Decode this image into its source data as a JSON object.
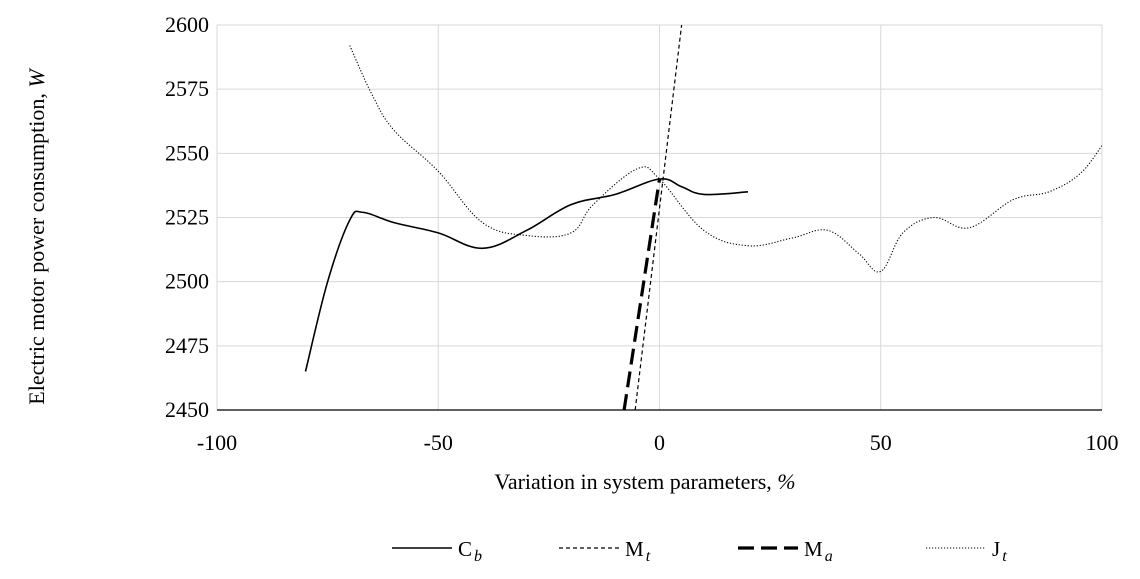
{
  "chart_data": {
    "type": "line",
    "xlabel_main": "Variation in system parameters,",
    "xlabel_unit": "%",
    "ylabel_main": "Electric motor power consumption,",
    "ylabel_unit": "W",
    "xlim": [
      -100,
      100
    ],
    "ylim": [
      2450,
      2600
    ],
    "x_ticks": [
      "-100",
      "-50",
      "0",
      "50",
      "100"
    ],
    "y_ticks": [
      "2450",
      "2475",
      "2500",
      "2525",
      "2550",
      "2575",
      "2600"
    ],
    "grid": "vertical and horizontal",
    "legend_position": "bottom",
    "series": [
      {
        "name": "C",
        "subscript": "b",
        "style": "solid",
        "color": "#000000",
        "x": [
          -80,
          -75,
          -70,
          -67,
          -60,
          -50,
          -40,
          -30,
          -20,
          -10,
          0,
          5,
          10,
          20
        ],
        "y": [
          2465,
          2500,
          2524,
          2527,
          2523,
          2519,
          2513,
          2520,
          2530,
          2534,
          2540,
          2537,
          2534,
          2535
        ]
      },
      {
        "name": "M",
        "subscript": "t",
        "style": "dashed-fine",
        "color": "#000000",
        "x": [
          -5.5,
          5
        ],
        "y": [
          2450,
          2600
        ]
      },
      {
        "name": "M",
        "subscript": "a",
        "style": "dashed-heavy",
        "color": "#000000",
        "x": [
          -8,
          0
        ],
        "y": [
          2450,
          2540
        ]
      },
      {
        "name": "J",
        "subscript": "t",
        "style": "dotted",
        "color": "#000000",
        "x": [
          -70,
          -65,
          -60,
          -50,
          -40,
          -30,
          -20,
          -15,
          -5,
          0,
          10,
          20,
          30,
          38,
          45,
          50,
          55,
          62,
          70,
          80,
          88,
          95,
          100
        ],
        "y": [
          2592,
          2573,
          2559,
          2543,
          2523,
          2518,
          2519,
          2530,
          2544,
          2540,
          2520,
          2514,
          2517,
          2520,
          2511,
          2504,
          2519,
          2525,
          2521,
          2532,
          2535,
          2542,
          2553
        ]
      }
    ]
  }
}
